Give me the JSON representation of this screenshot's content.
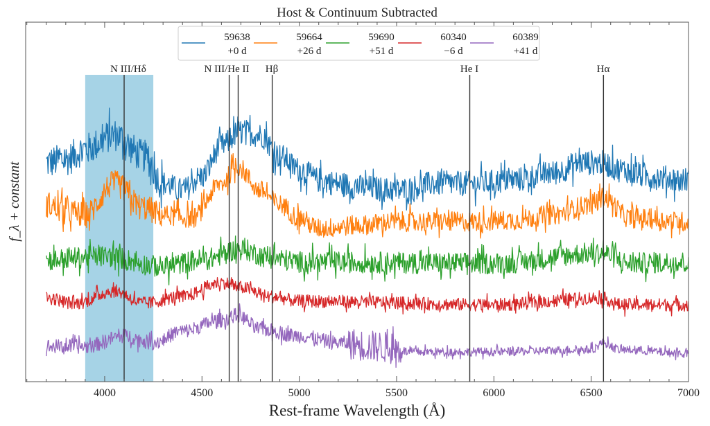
{
  "chart_data": {
    "type": "line",
    "title": "Host & Continuum Subtracted",
    "xlabel": "Rest-frame Wavelength (Å)",
    "ylabel": "f_λ + constant",
    "xlim": [
      3594,
      7000
    ],
    "ylim": [
      0,
      10
    ],
    "x_ticks": [
      4000,
      4500,
      5000,
      5500,
      6000,
      6500,
      7000
    ],
    "x_tick_labels": [
      "4000",
      "4500",
      "5000",
      "5500",
      "6000",
      "6500",
      "7000"
    ],
    "y_ticks_shown": false,
    "grid": false,
    "legend_position": "top-center",
    "shaded_region": {
      "x0": 3900,
      "x1": 4250,
      "color": "#a6d3e6"
    },
    "line_markers": [
      {
        "label": "N III/Hδ",
        "x": 4100
      },
      {
        "label": "N III/He II",
        "x": 4640
      },
      {
        "label": "",
        "x": 4686
      },
      {
        "label": "Hβ",
        "x": 4861
      },
      {
        "label": "He I",
        "x": 5876
      },
      {
        "label": "Hα",
        "x": 6563
      }
    ],
    "series": [
      {
        "name": "59638",
        "phase": "+0 d",
        "color": "#1f77b4",
        "noise": 0.35,
        "x": [
          3700,
          3800,
          3900,
          4050,
          4200,
          4300,
          4400,
          4500,
          4600,
          4700,
          4800,
          4900,
          5000,
          5100,
          5200,
          5300,
          5500,
          5700,
          5900,
          6100,
          6300,
          6450,
          6550,
          6650,
          6800,
          7000
        ],
        "y": [
          6.09,
          6.18,
          6.47,
          6.86,
          6.28,
          5.51,
          5.32,
          5.7,
          6.57,
          6.96,
          6.86,
          6.28,
          5.9,
          5.61,
          5.51,
          5.41,
          5.32,
          5.51,
          5.51,
          5.61,
          5.8,
          6.09,
          6.09,
          5.9,
          5.7,
          5.61
        ]
      },
      {
        "name": "59664",
        "phase": "+26 d",
        "color": "#ff7f0e",
        "noise": 0.28,
        "x": [
          3700,
          3800,
          3900,
          4050,
          4200,
          4300,
          4450,
          4600,
          4680,
          4800,
          4900,
          5000,
          5100,
          5300,
          5500,
          5700,
          5900,
          6100,
          6300,
          6500,
          6560,
          6700,
          7000
        ],
        "y": [
          4.93,
          4.74,
          4.64,
          5.51,
          4.84,
          4.64,
          4.55,
          5.51,
          5.99,
          5.32,
          4.93,
          4.55,
          4.26,
          4.35,
          4.45,
          4.45,
          4.45,
          4.49,
          4.64,
          4.93,
          5.13,
          4.55,
          4.45
        ]
      },
      {
        "name": "59690",
        "phase": "+51 d",
        "color": "#2ca02c",
        "noise": 0.3,
        "x": [
          3700,
          4000,
          4300,
          4500,
          4700,
          4850,
          5000,
          6000,
          6550,
          6700,
          7000
        ],
        "y": [
          3.39,
          3.49,
          3.2,
          3.39,
          3.68,
          3.45,
          3.33,
          3.29,
          3.58,
          3.29,
          3.33
        ]
      },
      {
        "name": "60340",
        "phase": "−6 d",
        "color": "#d62728",
        "noise": 0.18,
        "x": [
          3700,
          3850,
          4050,
          4200,
          4400,
          4600,
          4700,
          4850,
          5000,
          6000,
          6550,
          6650,
          7000
        ],
        "y": [
          2.33,
          2.18,
          2.52,
          2.18,
          2.37,
          2.76,
          2.62,
          2.37,
          2.24,
          2.14,
          2.33,
          2.14,
          2.14
        ]
      },
      {
        "name": "60389",
        "phase": "+41 d",
        "color": "#9467bd",
        "noise": 0.2,
        "x": [
          3700,
          3900,
          4100,
          4250,
          4400,
          4600,
          4680,
          4800,
          5000,
          5200,
          5400,
          5520,
          5560,
          6000,
          6500,
          6560,
          6650,
          7000
        ],
        "y": [
          0.98,
          0.98,
          1.27,
          1.08,
          1.41,
          1.71,
          1.85,
          1.46,
          1.27,
          1.08,
          0.98,
          0.89,
          0.83,
          0.83,
          0.89,
          1.08,
          0.89,
          0.79
        ]
      }
    ]
  }
}
